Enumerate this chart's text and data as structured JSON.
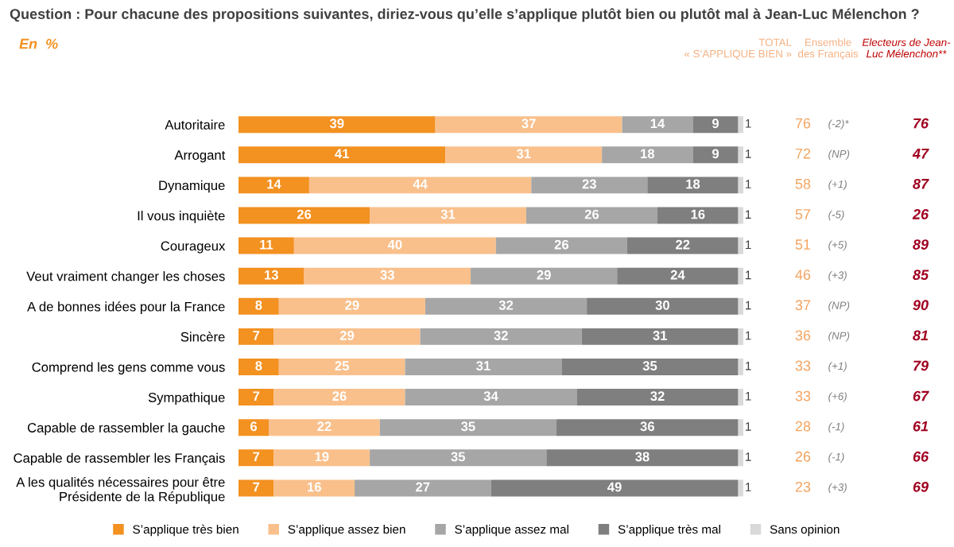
{
  "chart_data": {
    "type": "bar",
    "orientation": "horizontal",
    "stacked": true,
    "data_labels": true,
    "legend": "bottom",
    "grid": false,
    "title": "Question : Pour chacune des propositions suivantes, diriez-vous qu’elle s’applique plutôt bien ou plutôt mal à Jean-Luc Mélenchon ?",
    "categories": [
      "Autoritaire",
      "Arrogant",
      "Dynamique",
      "Il vous inquiète",
      "Courageux",
      "Veut vraiment changer les choses",
      "A de bonnes idées pour la France",
      "Sincère",
      "Comprend les gens comme vous",
      "Sympathique",
      "Capable de rassembler la gauche",
      "Capable de rassembler les Français",
      "A les qualités nécessaires pour être\nPrésidente de la République"
    ],
    "series": [
      {
        "name": "S’applique très bien",
        "color": "#f39121",
        "values": [
          39,
          41,
          14,
          26,
          11,
          13,
          8,
          7,
          8,
          7,
          6,
          7,
          7
        ]
      },
      {
        "name": "S’applique assez bien",
        "color": "#f9c08c",
        "values": [
          37,
          31,
          44,
          31,
          40,
          33,
          29,
          29,
          25,
          26,
          22,
          19,
          16
        ]
      },
      {
        "name": "S’applique assez mal",
        "color": "#a6a6a6",
        "values": [
          14,
          18,
          23,
          26,
          26,
          29,
          32,
          32,
          31,
          34,
          35,
          35,
          27
        ]
      },
      {
        "name": "S’applique très mal",
        "color": "#7f7f7f",
        "values": [
          9,
          9,
          18,
          16,
          22,
          24,
          30,
          31,
          35,
          32,
          36,
          38,
          49
        ]
      },
      {
        "name": "Sans opinion",
        "color": "#d9d9d9",
        "values": [
          1,
          1,
          1,
          1,
          1,
          1,
          1,
          1,
          1,
          1,
          1,
          1,
          1
        ]
      }
    ],
    "annotations": [
      "En  %",
      "TOTAL\n« S’APPLIQUE BIEN »",
      "Ensemble\ndes Français",
      "Electeurs de Jean-\nLuc Mélenchon**",
      "76",
      "(-2)*",
      "76",
      "72",
      "(NP)",
      "47",
      "58",
      "(+1)",
      "87",
      "57",
      "(-5)",
      "26",
      "51",
      "(+5)",
      "89",
      "46",
      "(+3)",
      "85",
      "37",
      "(NP)",
      "90",
      "36",
      "(NP)",
      "81",
      "33",
      "(+1)",
      "79",
      "33",
      "(+6)",
      "67",
      "28",
      "(-1)",
      "61",
      "26",
      "(-1)",
      "66",
      "23",
      "(+3)",
      "69"
    ]
  }
}
